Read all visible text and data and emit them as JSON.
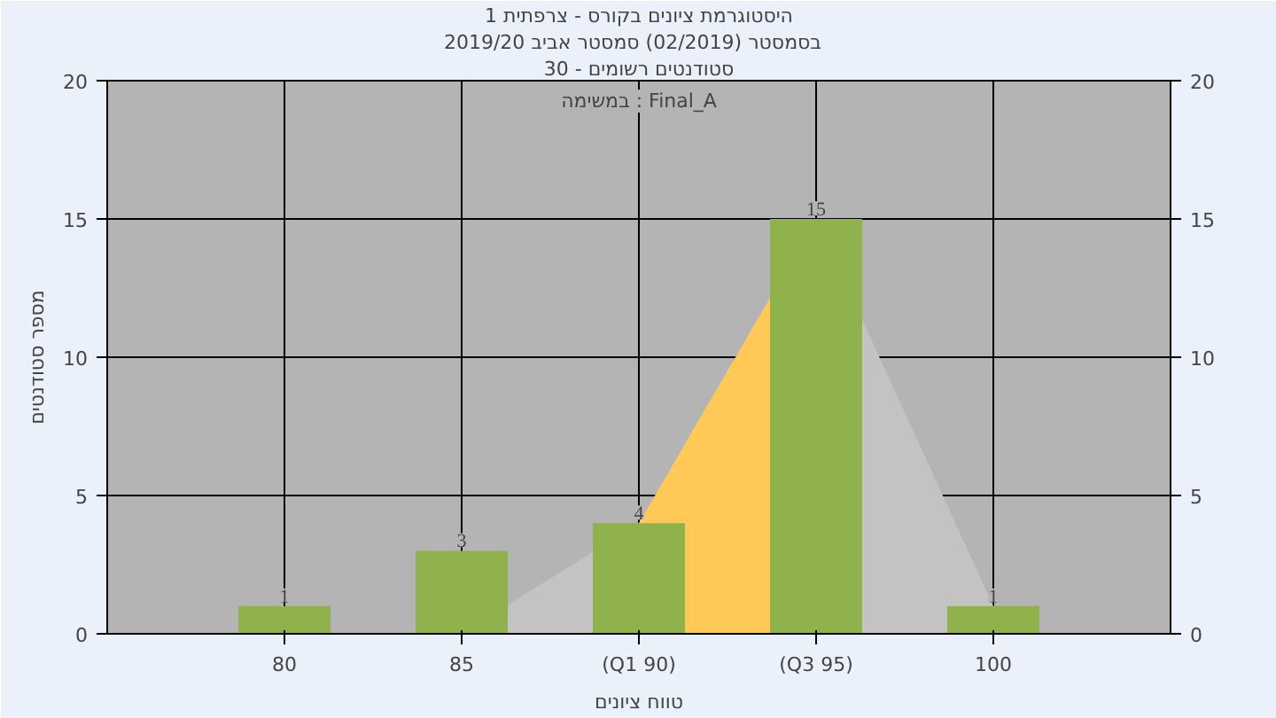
{
  "chart_data": {
    "type": "bar",
    "title": "היסטוגרמת ציונים בקורס - צרפתית 1",
    "subtitle": "בסמסטר  (02/2019)  סמסטר אביב 2019/20",
    "xlabel": "טווח ציונים",
    "ylabel": "מספר סטודנטים",
    "annotations": [
      "סטודנטים רשומים - 30",
      "במשימה : Final_A"
    ],
    "categories": [
      "80",
      "85",
      "(Q1 90)",
      "(Q3 95)",
      "100"
    ],
    "series": [
      {
        "type": "area",
        "color": "#c3c3c3",
        "values": [
          null,
          0,
          4,
          15,
          1
        ]
      },
      {
        "type": "area",
        "color": "#ffc857",
        "values": [
          null,
          null,
          4,
          15,
          null
        ]
      },
      {
        "color": "#8fb24c",
        "values": [
          1,
          3,
          4,
          15,
          1
        ],
        "value_labels": [
          "1",
          "3",
          "4",
          "15",
          "1"
        ]
      }
    ],
    "ylim": [
      0,
      20
    ],
    "yticks": [
      0,
      5,
      10,
      15,
      20
    ],
    "y2lim": [
      0,
      20
    ],
    "y2ticks": [
      0,
      5,
      10,
      15,
      20
    ],
    "grid": true
  }
}
